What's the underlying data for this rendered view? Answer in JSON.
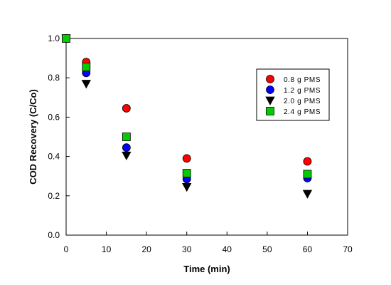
{
  "chart_data": {
    "type": "scatter",
    "xlabel": "Time (min)",
    "ylabel": "COD Recovery (C/Co)",
    "xlim": [
      0,
      70
    ],
    "ylim": [
      0.0,
      1.0
    ],
    "xticks": [
      0,
      10,
      20,
      30,
      40,
      50,
      60,
      70
    ],
    "yticks": [
      0.0,
      0.2,
      0.4,
      0.6,
      0.8,
      1.0
    ],
    "xtick_labels": [
      "0",
      "10",
      "20",
      "30",
      "40",
      "50",
      "60",
      "70"
    ],
    "ytick_labels": [
      "0.0",
      "0.2",
      "0.4",
      "0.6",
      "0.8",
      "1.0"
    ],
    "grid": false,
    "legend_position": "top-right",
    "series": [
      {
        "name": "0.8 g PMS",
        "marker": "circle",
        "color": "#ff0000",
        "x": [
          0,
          5,
          15,
          30,
          60
        ],
        "y": [
          1.0,
          0.88,
          0.645,
          0.39,
          0.375
        ]
      },
      {
        "name": "1.2 g PMS",
        "marker": "circle",
        "color": "#0000ff",
        "x": [
          0,
          5,
          15,
          30,
          60
        ],
        "y": [
          1.0,
          0.825,
          0.445,
          0.285,
          0.29
        ]
      },
      {
        "name": "2.0 g PMS",
        "marker": "triangle-down",
        "color": "#000000",
        "x": [
          0,
          5,
          15,
          30,
          60
        ],
        "y": [
          1.0,
          0.77,
          0.405,
          0.245,
          0.21
        ]
      },
      {
        "name": "2.4 g PMS",
        "marker": "square",
        "color": "#00cc00",
        "x": [
          0,
          5,
          15,
          30,
          60
        ],
        "y": [
          1.0,
          0.855,
          0.5,
          0.315,
          0.31
        ]
      }
    ]
  }
}
